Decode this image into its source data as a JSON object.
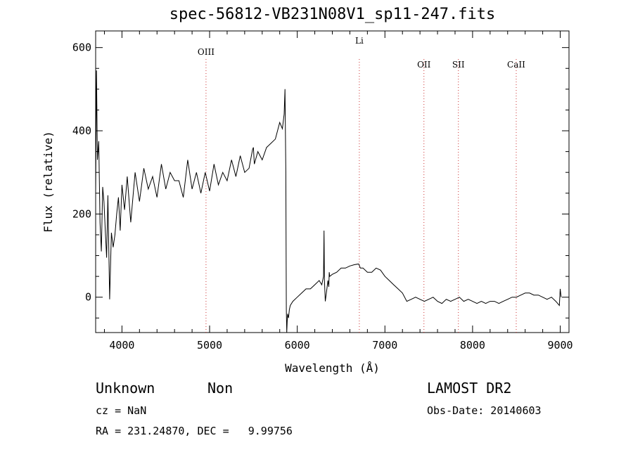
{
  "chart_data": {
    "type": "line",
    "title": "spec-56812-VB231N08V1_sp11-247.fits",
    "xlabel": "Wavelength (Å)",
    "ylabel": "Flux (relative)",
    "xlim": [
      3700,
      9100
    ],
    "ylim": [
      -85,
      640
    ],
    "x_ticks": [
      4000,
      5000,
      6000,
      7000,
      8000,
      9000
    ],
    "y_ticks": [
      0,
      200,
      400,
      600
    ],
    "grid": false,
    "line_color": "#000000",
    "marker_color": "#cc3333",
    "lines": [
      {
        "label": "OIII",
        "wavelength": 4959
      },
      {
        "label": "Li",
        "wavelength": 6708
      },
      {
        "label": "OII",
        "wavelength": 7445
      },
      {
        "label": "SII",
        "wavelength": 7838
      },
      {
        "label": "CaII",
        "wavelength": 8498
      }
    ],
    "series": [
      {
        "x": [
          3700,
          3710,
          3720,
          3735,
          3750,
          3765,
          3780,
          3795,
          3810,
          3825,
          3840,
          3860,
          3880,
          3900,
          3920,
          3940,
          3960,
          3980,
          4000,
          4030,
          4060,
          4100,
          4150,
          4200,
          4250,
          4300,
          4350,
          4400,
          4450,
          4500,
          4550,
          4600,
          4650,
          4700,
          4750,
          4800,
          4850,
          4900,
          4950,
          5000,
          5050,
          5100,
          5150,
          5200,
          5250,
          5300,
          5350,
          5400,
          5450,
          5490,
          5500,
          5510,
          5550,
          5600,
          5650,
          5700,
          5750,
          5800,
          5830,
          5850,
          5860,
          5870,
          5875,
          5880,
          5885,
          5890,
          5900,
          5910,
          5920,
          5950,
          6000,
          6050,
          6100,
          6150,
          6200,
          6250,
          6280,
          6300,
          6305,
          6310,
          6320,
          6350,
          6360,
          6365,
          6370,
          6400,
          6450,
          6500,
          6550,
          6600,
          6650,
          6700,
          6720,
          6750,
          6800,
          6850,
          6900,
          6950,
          7000,
          7050,
          7100,
          7150,
          7200,
          7250,
          7300,
          7350,
          7400,
          7450,
          7500,
          7550,
          7600,
          7650,
          7700,
          7750,
          7800,
          7850,
          7900,
          7950,
          8000,
          8050,
          8100,
          8150,
          8200,
          8250,
          8300,
          8350,
          8400,
          8450,
          8500,
          8550,
          8600,
          8650,
          8700,
          8750,
          8800,
          8850,
          8900,
          8950,
          8990,
          9000,
          9010
        ],
        "values": [
          250,
          545,
          330,
          375,
          180,
          110,
          265,
          230,
          160,
          95,
          245,
          -5,
          155,
          120,
          150,
          200,
          240,
          160,
          270,
          210,
          290,
          180,
          300,
          230,
          310,
          260,
          290,
          240,
          320,
          260,
          300,
          280,
          280,
          240,
          330,
          260,
          300,
          250,
          300,
          255,
          320,
          270,
          300,
          280,
          330,
          290,
          340,
          300,
          310,
          355,
          360,
          320,
          350,
          330,
          360,
          370,
          380,
          420,
          405,
          440,
          500,
          300,
          -30,
          -85,
          -60,
          -40,
          -50,
          -30,
          -20,
          -10,
          0,
          10,
          20,
          20,
          30,
          40,
          30,
          50,
          160,
          40,
          -10,
          40,
          25,
          60,
          50,
          55,
          60,
          70,
          70,
          75,
          78,
          80,
          70,
          70,
          60,
          60,
          70,
          65,
          50,
          40,
          30,
          20,
          10,
          -10,
          -5,
          0,
          -5,
          -10,
          -5,
          0,
          -10,
          -15,
          -5,
          -10,
          -5,
          0,
          -10,
          -5,
          -10,
          -15,
          -10,
          -15,
          -10,
          -10,
          -15,
          -10,
          -5,
          0,
          0,
          5,
          10,
          10,
          5,
          5,
          0,
          -5,
          0,
          -10,
          -20,
          20,
          0
        ]
      }
    ]
  },
  "info": {
    "class_label": "Unknown",
    "subclass_label": "Non",
    "cz_line": "cz = NaN",
    "radec_line": "RA = 231.24870, DEC =   9.99756",
    "survey_label": "LAMOST DR2",
    "obs_date_line": "Obs-Date: 20140603"
  }
}
